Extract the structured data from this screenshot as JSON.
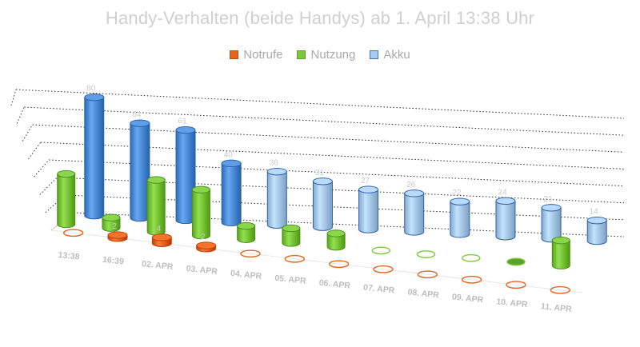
{
  "colors": {
    "notrufe": "#e8631c",
    "nutzung": "#7ac83a",
    "akku": "#4f8fd9",
    "akku_light": "#a9cbee"
  },
  "chart_data": {
    "type": "bar",
    "subtype": "3d-cylinder",
    "title": "Handy-Verhalten (beide Handys) ab 1. April 13:38 Uhr",
    "legend_position": "top",
    "grid": true,
    "categories": [
      "13:38",
      "16:39",
      "02. APR",
      "03. APR",
      "04. APR",
      "05. APR",
      "06. APR",
      "07. APR",
      "08. APR",
      "09. APR",
      "10. APR",
      "11. APR"
    ],
    "series": [
      {
        "name": "Notrufe",
        "values": [
          0,
          2,
          4,
          2,
          0,
          0,
          0,
          0,
          0,
          0,
          0,
          0
        ],
        "data_labels": [
          "",
          "2",
          "4",
          "2",
          "",
          "",
          "",
          "",
          "",
          "",
          "",
          ""
        ]
      },
      {
        "name": "Nutzung",
        "values": [
          34,
          7,
          35,
          31,
          9,
          10,
          9,
          0,
          0,
          0,
          0,
          17
        ],
        "data_labels": [
          "",
          "",
          "",
          "",
          "",
          "",
          "",
          "",
          "",
          "",
          "",
          ""
        ]
      },
      {
        "name": "Akku",
        "values": [
          80,
          64,
          61,
          40,
          36,
          31,
          27,
          26,
          22,
          24,
          21,
          14
        ],
        "data_labels": [
          "80",
          "64",
          "61",
          "40",
          "36",
          "31",
          "27",
          "26",
          "22",
          "24",
          "21",
          "14"
        ]
      }
    ]
  }
}
